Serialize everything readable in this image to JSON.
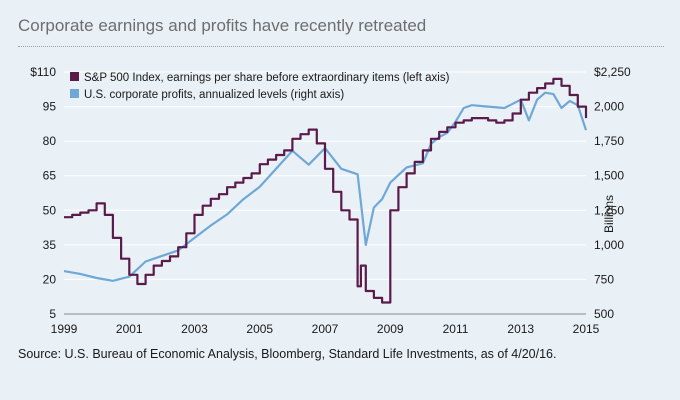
{
  "title": "Corporate earnings and profits have recently retreated",
  "source": "Source: U.S. Bureau of Economic Analysis, Bloomberg, Standard Life Investments, as of 4/20/16.",
  "colors": {
    "left_series": "#5a1a4a",
    "right_series": "#6fa8d6",
    "grid": "#ffffff",
    "background": "#e9f0f6"
  },
  "chart_data": {
    "type": "line",
    "xlim": [
      1999,
      2015
    ],
    "x_ticks": [
      "1999",
      "2001",
      "2003",
      "2005",
      "2007",
      "2009",
      "2011",
      "2013",
      "2015"
    ],
    "left_axis": {
      "ylim": [
        5,
        110
      ],
      "ticks": [
        "$110",
        "95",
        "80",
        "65",
        "50",
        "35",
        "20",
        "5"
      ]
    },
    "right_axis": {
      "ylim": [
        500,
        2250
      ],
      "ticks": [
        "$2,250",
        "2,000",
        "1,750",
        "1,500",
        "1,250",
        "1,000",
        "750",
        "500"
      ],
      "label": "Billions"
    },
    "grid": true,
    "legend_position": "top-left",
    "series": [
      {
        "name": "S&P 500 Index, earnings per share before extraordinary items (left axis)",
        "axis": "left",
        "step": true,
        "x": [
          1999.0,
          1999.25,
          1999.5,
          1999.75,
          2000.0,
          2000.25,
          2000.5,
          2000.75,
          2001.0,
          2001.25,
          2001.5,
          2001.75,
          2002.0,
          2002.25,
          2002.5,
          2002.75,
          2003.0,
          2003.25,
          2003.5,
          2003.75,
          2004.0,
          2004.25,
          2004.5,
          2004.75,
          2005.0,
          2005.25,
          2005.5,
          2005.75,
          2006.0,
          2006.25,
          2006.5,
          2006.75,
          2007.0,
          2007.25,
          2007.5,
          2007.75,
          2008.0,
          2008.1,
          2008.25,
          2008.5,
          2008.75,
          2009.0,
          2009.25,
          2009.5,
          2009.75,
          2010.0,
          2010.25,
          2010.5,
          2010.75,
          2011.0,
          2011.25,
          2011.5,
          2011.75,
          2012.0,
          2012.25,
          2012.5,
          2012.75,
          2013.0,
          2013.25,
          2013.5,
          2013.75,
          2014.0,
          2014.25,
          2014.5,
          2014.75,
          2015.0
        ],
        "values": [
          47,
          48,
          49,
          50,
          53,
          48,
          38,
          29,
          22,
          18,
          22,
          26,
          28,
          30,
          34,
          40,
          48,
          52,
          55,
          57,
          60,
          62,
          64,
          66,
          70,
          72,
          74,
          76,
          81,
          83,
          85,
          79,
          68,
          58,
          50,
          46,
          17,
          26,
          15,
          12,
          10,
          50,
          60,
          66,
          71,
          76,
          81,
          84,
          86,
          88,
          89,
          90,
          90,
          89,
          88,
          89,
          92,
          98,
          101,
          103,
          105,
          107,
          104,
          100,
          95,
          90
        ]
      },
      {
        "name": "U.S. corporate profits, annualized levels (right axis)",
        "axis": "right",
        "step": false,
        "x": [
          1999.0,
          1999.5,
          2000.0,
          2000.5,
          2001.0,
          2001.5,
          2002.0,
          2002.5,
          2003.0,
          2003.5,
          2004.0,
          2004.5,
          2005.0,
          2005.5,
          2006.0,
          2006.5,
          2007.0,
          2007.5,
          2008.0,
          2008.25,
          2008.5,
          2008.75,
          2009.0,
          2009.5,
          2010.0,
          2010.25,
          2010.5,
          2010.75,
          2011.0,
          2011.25,
          2011.5,
          2012.0,
          2012.5,
          2013.0,
          2013.25,
          2013.5,
          2013.75,
          2014.0,
          2014.25,
          2014.5,
          2014.75,
          2015.0
        ],
        "values": [
          810,
          790,
          760,
          740,
          770,
          880,
          920,
          960,
          1050,
          1140,
          1220,
          1330,
          1420,
          1550,
          1680,
          1580,
          1700,
          1550,
          1510,
          1000,
          1270,
          1330,
          1450,
          1560,
          1590,
          1730,
          1780,
          1810,
          1890,
          1990,
          2010,
          2000,
          1990,
          2050,
          1900,
          2050,
          2100,
          2090,
          1990,
          2040,
          2010,
          1830
        ]
      }
    ]
  }
}
